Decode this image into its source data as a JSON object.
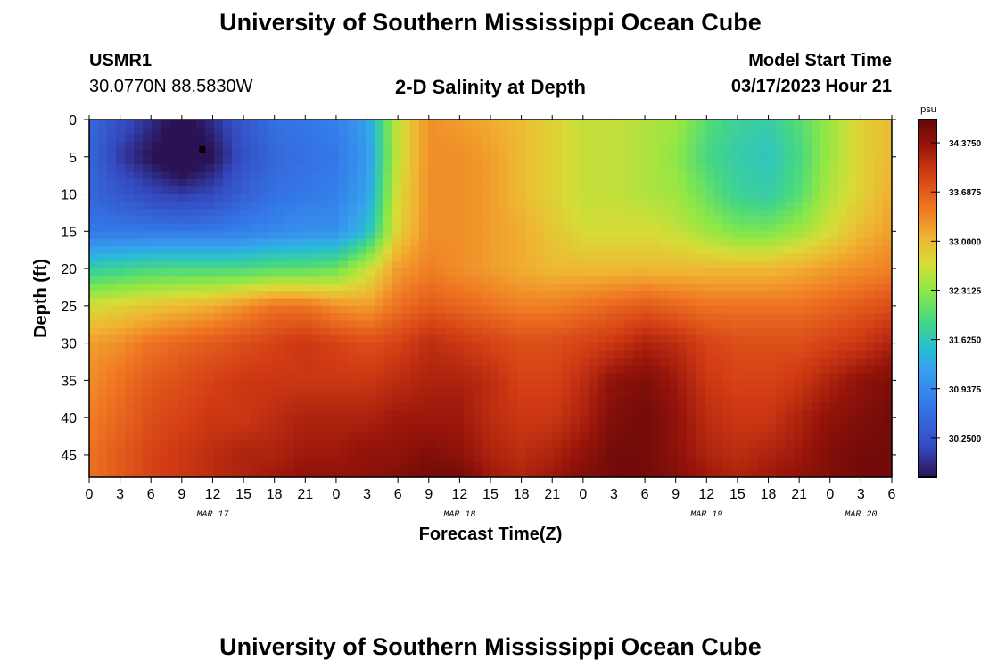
{
  "page": {
    "title_top": "University of Southern Mississippi Ocean Cube",
    "title_bottom": "University of Southern Mississippi Ocean Cube",
    "station_id": "USMR1",
    "station_coords": "30.0770N  88.5830W",
    "subtitle": "2-D Salinity at Depth",
    "model_start_label": "Model Start Time",
    "model_start_value": "03/17/2023 Hour 21"
  },
  "chart_data": {
    "type": "heatmap",
    "title": "2-D Salinity at Depth",
    "xlabel": "Forecast Time(Z)",
    "ylabel": "Depth (ft)",
    "xlim": [
      0,
      78
    ],
    "ylim": [
      0,
      48
    ],
    "y_inverted": true,
    "x_tick_values": [
      0,
      3,
      6,
      9,
      12,
      15,
      18,
      21,
      24,
      27,
      30,
      33,
      36,
      39,
      42,
      45,
      48,
      51,
      54,
      57,
      60,
      63,
      66,
      69,
      72,
      75,
      78
    ],
    "x_tick_labels": [
      "0",
      "3",
      "6",
      "9",
      "12",
      "15",
      "18",
      "21",
      "0",
      "3",
      "6",
      "9",
      "12",
      "15",
      "18",
      "21",
      "0",
      "3",
      "6",
      "9",
      "12",
      "15",
      "18",
      "21",
      "0",
      "3",
      "6"
    ],
    "y_tick_values": [
      0,
      5,
      10,
      15,
      20,
      25,
      30,
      35,
      40,
      45
    ],
    "y_tick_labels": [
      "0",
      "5",
      "10",
      "15",
      "20",
      "25",
      "30",
      "35",
      "40",
      "45"
    ],
    "date_labels": [
      {
        "label": "MAR 17",
        "x": 12
      },
      {
        "label": "MAR 18",
        "x": 36
      },
      {
        "label": "MAR 19",
        "x": 60
      },
      {
        "label": "MAR 20",
        "x": 75
      }
    ],
    "marker": {
      "x": 11,
      "y": 4
    },
    "colorbar": {
      "unit": "psu",
      "range": [
        29.7,
        34.7
      ],
      "tick_values": [
        34.375,
        33.6875,
        33.0,
        32.3125,
        31.625,
        30.9375,
        30.25
      ],
      "tick_labels": [
        "34.3750",
        "33.6875",
        "33.0000",
        "32.3125",
        "31.6250",
        "30.9375",
        "30.2500"
      ]
    },
    "x_values": [
      0,
      3,
      6,
      9,
      12,
      15,
      18,
      21,
      24,
      27,
      30,
      33,
      36,
      39,
      42,
      45,
      48,
      51,
      54,
      57,
      60,
      63,
      66,
      69,
      72,
      75,
      78
    ],
    "y_values": [
      0,
      5,
      10,
      15,
      20,
      25,
      30,
      35,
      40,
      45,
      48
    ],
    "values": [
      [
        30.5,
        30.2,
        29.9,
        29.6,
        29.9,
        30.3,
        30.6,
        30.7,
        30.8,
        31.2,
        32.6,
        33.3,
        33.2,
        33.1,
        33.0,
        32.8,
        32.6,
        32.6,
        32.5,
        32.4,
        32.0,
        31.8,
        31.7,
        32.0,
        32.4,
        32.8,
        33.0
      ],
      [
        30.5,
        30.0,
        29.7,
        29.4,
        29.7,
        30.2,
        30.5,
        30.6,
        30.7,
        31.1,
        32.6,
        33.3,
        33.3,
        33.2,
        33.0,
        32.8,
        32.6,
        32.6,
        32.5,
        32.3,
        31.9,
        31.7,
        31.6,
        31.9,
        32.4,
        32.8,
        33.0
      ],
      [
        30.5,
        30.3,
        30.1,
        30.0,
        30.1,
        30.4,
        30.6,
        30.7,
        30.8,
        31.2,
        32.7,
        33.3,
        33.3,
        33.2,
        33.0,
        32.8,
        32.6,
        32.6,
        32.5,
        32.4,
        32.1,
        31.8,
        31.7,
        32.0,
        32.5,
        32.8,
        33.1
      ],
      [
        30.7,
        30.7,
        30.7,
        30.7,
        30.7,
        30.8,
        30.9,
        31.0,
        31.0,
        31.5,
        32.8,
        33.3,
        33.3,
        33.2,
        33.1,
        32.9,
        32.7,
        32.7,
        32.7,
        32.6,
        32.4,
        32.2,
        32.2,
        32.4,
        32.7,
        33.0,
        33.2
      ],
      [
        31.7,
        31.8,
        31.9,
        31.9,
        31.9,
        31.9,
        32.0,
        32.0,
        32.1,
        32.6,
        33.2,
        33.4,
        33.3,
        33.2,
        33.1,
        33.0,
        33.0,
        33.0,
        33.0,
        33.0,
        33.0,
        33.0,
        33.0,
        33.1,
        33.2,
        33.3,
        33.4
      ],
      [
        32.7,
        32.8,
        32.9,
        33.0,
        33.1,
        33.3,
        33.5,
        33.5,
        33.3,
        33.2,
        33.5,
        33.7,
        33.6,
        33.5,
        33.4,
        33.4,
        33.5,
        33.6,
        33.7,
        33.6,
        33.5,
        33.5,
        33.5,
        33.5,
        33.6,
        33.7,
        33.8
      ],
      [
        33.2,
        33.3,
        33.5,
        33.6,
        33.7,
        33.8,
        33.9,
        34.0,
        33.9,
        33.8,
        33.9,
        34.1,
        34.0,
        33.9,
        33.8,
        33.8,
        33.9,
        34.0,
        34.2,
        34.1,
        33.9,
        33.8,
        33.8,
        33.8,
        33.9,
        34.0,
        34.2
      ],
      [
        33.3,
        33.5,
        33.7,
        33.8,
        33.9,
        34.0,
        34.0,
        34.0,
        34.0,
        34.0,
        34.1,
        34.2,
        34.2,
        34.1,
        33.9,
        33.9,
        34.1,
        34.4,
        34.5,
        34.3,
        34.0,
        33.9,
        33.9,
        34.0,
        34.2,
        34.4,
        34.5
      ],
      [
        33.4,
        33.6,
        33.8,
        33.9,
        34.0,
        34.0,
        34.1,
        34.2,
        34.2,
        34.2,
        34.3,
        34.3,
        34.3,
        34.1,
        34.0,
        34.0,
        34.2,
        34.5,
        34.6,
        34.4,
        34.1,
        34.0,
        34.0,
        34.2,
        34.4,
        34.5,
        34.6
      ],
      [
        33.5,
        33.7,
        33.9,
        34.0,
        34.1,
        34.2,
        34.2,
        34.3,
        34.3,
        34.4,
        34.4,
        34.5,
        34.4,
        34.2,
        34.1,
        34.2,
        34.4,
        34.6,
        34.6,
        34.4,
        34.2,
        34.1,
        34.2,
        34.3,
        34.5,
        34.6,
        34.6
      ],
      [
        33.5,
        33.7,
        33.9,
        34.0,
        34.1,
        34.2,
        34.3,
        34.4,
        34.4,
        34.4,
        34.5,
        34.6,
        34.6,
        34.3,
        34.2,
        34.3,
        34.5,
        34.6,
        34.6,
        34.5,
        34.3,
        34.2,
        34.3,
        34.4,
        34.5,
        34.6,
        34.6
      ]
    ]
  }
}
